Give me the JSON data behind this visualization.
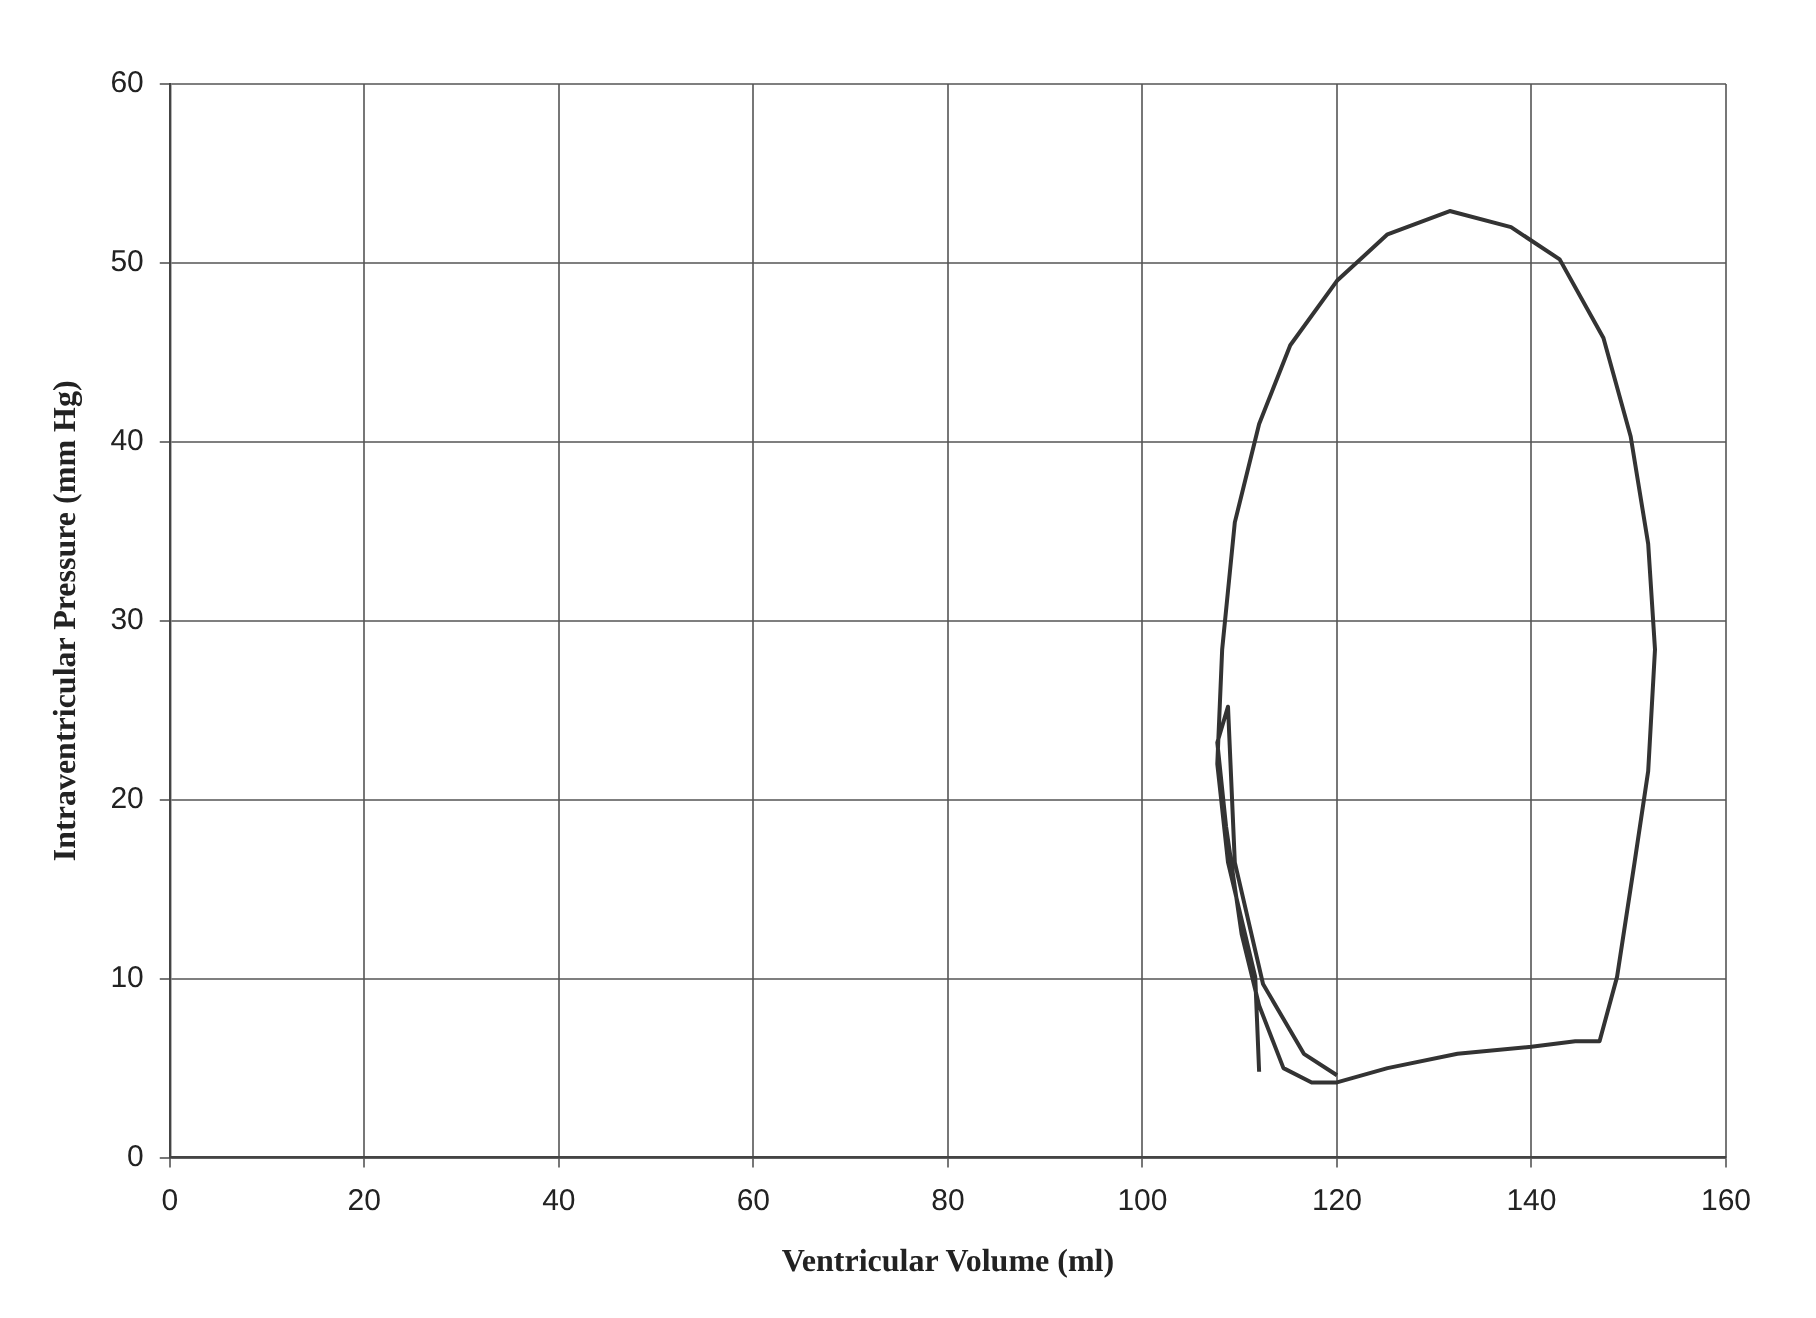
{
  "chart_data": {
    "type": "line",
    "xlabel": "Ventricular Volume (ml)",
    "ylabel": "Intraventricular Pressure (mm Hg)",
    "xlim": [
      0,
      160
    ],
    "xticks": [
      0,
      20,
      40,
      60,
      80,
      100,
      120,
      140,
      160
    ],
    "ylim": [
      0,
      60
    ],
    "yticks": [
      0,
      10,
      20,
      30,
      40,
      50,
      60
    ],
    "grid": true,
    "marker": "none",
    "line_style": "solid",
    "series": [
      {
        "color": "#333333",
        "x": [
          112,
          111.6,
          108.8,
          107.7,
          108.2,
          109.5,
          112,
          115.2,
          120,
          125.2,
          131.6,
          137.9,
          142.9,
          147.4,
          150.2,
          152,
          152.7,
          152,
          150.6,
          148.8,
          147,
          144.5,
          140,
          132.4,
          125.2,
          120,
          117.4,
          114.5,
          112,
          110.2,
          108.6,
          107.7,
          108.8,
          109.5,
          112.4,
          116.6,
          120
        ],
        "values": [
          4.8,
          10.1,
          16.5,
          22,
          28.4,
          35.5,
          41,
          45.4,
          49,
          51.6,
          52.9,
          52,
          50.2,
          45.8,
          40.3,
          34.3,
          28.4,
          21.6,
          16.5,
          10.1,
          6.5,
          6.5,
          6.2,
          5.8,
          5,
          4.2,
          4.2,
          5,
          8.5,
          12.5,
          18.5,
          23.2,
          25.2,
          16.5,
          9.7,
          5.8,
          4.6
        ]
      }
    ]
  }
}
